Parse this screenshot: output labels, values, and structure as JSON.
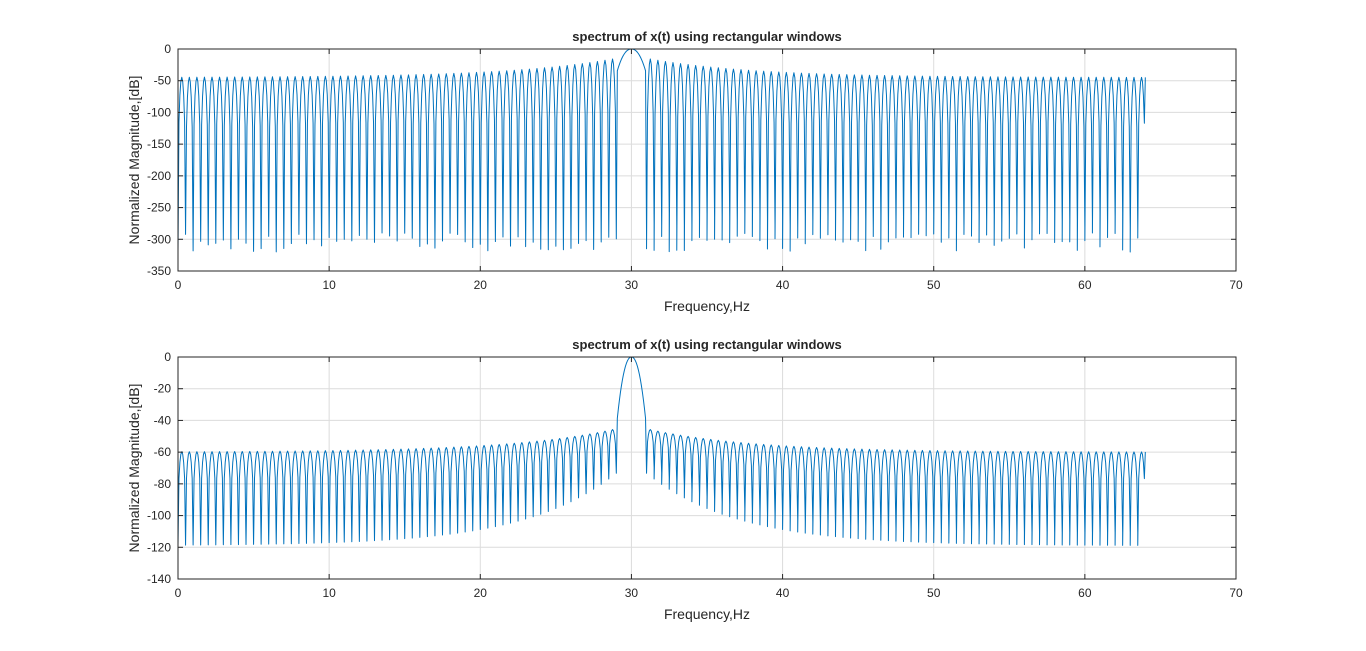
{
  "chart_data": [
    {
      "type": "line",
      "title": "spectrum of x(t) using rectangular windows",
      "xlabel": "Frequency,Hz",
      "ylabel": "Normalized Magnitude,[dB]",
      "xlim": [
        0,
        70
      ],
      "ylim": [
        -350,
        0
      ],
      "xticks": [
        0,
        10,
        20,
        30,
        40,
        50,
        60,
        70
      ],
      "yticks": [
        -350,
        -300,
        -250,
        -200,
        -150,
        -100,
        -50,
        0
      ],
      "grid": true,
      "series": [
        {
          "color": "#0072BD",
          "x_range": [
            0,
            64
          ],
          "peak_frequency": 30,
          "peak_db": 0,
          "sidelobe_db_near_peak": -10,
          "sidelobe_db_far": -45,
          "null_db_min": -320,
          "null_db_max": -290,
          "lobe_spacing_hz": 0.5
        }
      ]
    },
    {
      "type": "line",
      "title": "spectrum of x(t) using rectangular windows",
      "xlabel": "Frequency,Hz",
      "ylabel": "Normalized Magnitude,[dB]",
      "xlim": [
        0,
        70
      ],
      "ylim": [
        -140,
        0
      ],
      "xticks": [
        0,
        10,
        20,
        30,
        40,
        50,
        60,
        70
      ],
      "yticks": [
        -140,
        -120,
        -100,
        -80,
        -60,
        -40,
        -20,
        0
      ],
      "grid": true,
      "series": [
        {
          "color": "#0072BD",
          "x_range": [
            0,
            64
          ],
          "peak_frequency": 30,
          "peak_db": 0,
          "sidelobe_db_near_peak": -43,
          "sidelobe_db_far": -60,
          "null_db_near_peak": -65,
          "null_db_far": -119,
          "lobe_spacing_hz": 0.5
        }
      ]
    }
  ]
}
